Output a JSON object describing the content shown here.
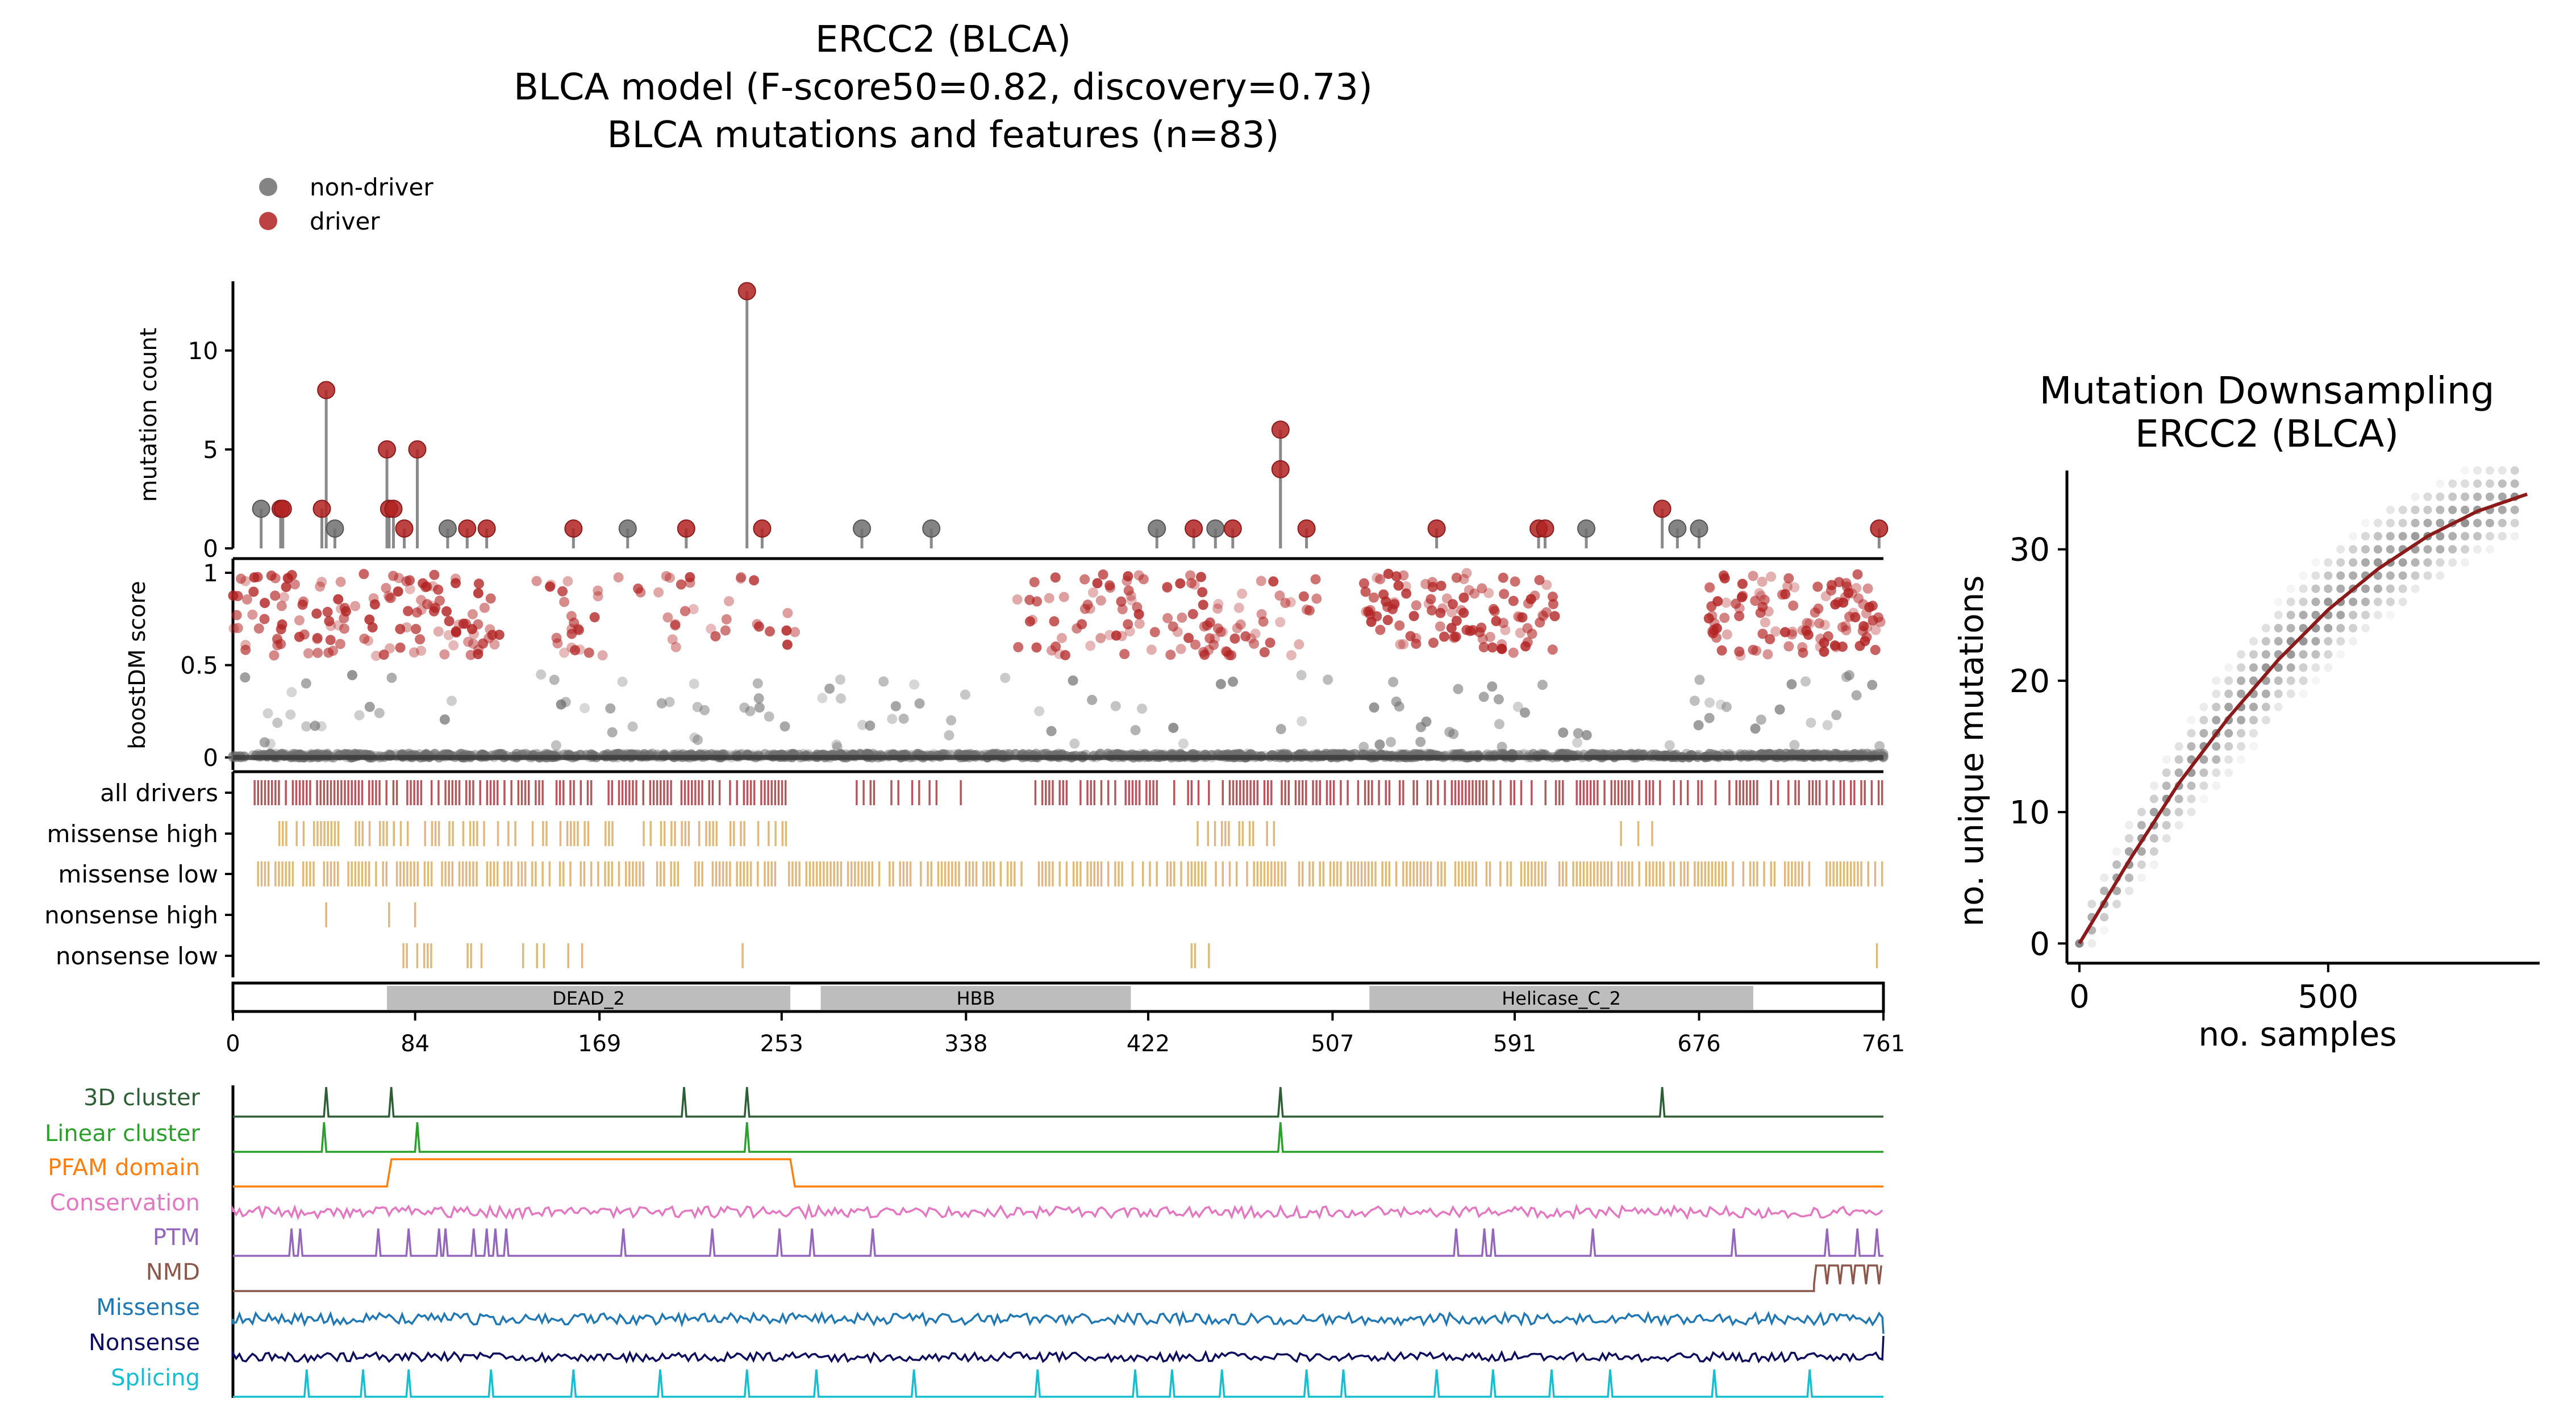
{
  "chart_data": [
    {
      "type": "lollipop",
      "title_lines": [
        "ERCC2 (BLCA)",
        "BLCA model (F-score50=0.82, discovery=0.73)",
        "BLCA mutations and features (n=83)"
      ],
      "legend": [
        {
          "label": "non-driver",
          "color": "#6e6e6e"
        },
        {
          "label": "driver",
          "color": "#b22222"
        }
      ],
      "legend_position": "top-left",
      "ylabel": "mutation count",
      "ylim": [
        0,
        13.5
      ],
      "yticks": [
        0,
        5,
        10
      ],
      "xlim": [
        0,
        761
      ],
      "xticks": [
        0,
        84,
        169,
        253,
        338,
        422,
        507,
        591,
        676,
        761
      ],
      "mutations": [
        {
          "pos": 13,
          "count": 2,
          "driver": false
        },
        {
          "pos": 22,
          "count": 2,
          "driver": true
        },
        {
          "pos": 23,
          "count": 2,
          "driver": true
        },
        {
          "pos": 41,
          "count": 2,
          "driver": true
        },
        {
          "pos": 43,
          "count": 8,
          "driver": true
        },
        {
          "pos": 47,
          "count": 1,
          "driver": false
        },
        {
          "pos": 71,
          "count": 5,
          "driver": true
        },
        {
          "pos": 72,
          "count": 2,
          "driver": true
        },
        {
          "pos": 74,
          "count": 2,
          "driver": true
        },
        {
          "pos": 79,
          "count": 1,
          "driver": true
        },
        {
          "pos": 85,
          "count": 5,
          "driver": true
        },
        {
          "pos": 99,
          "count": 1,
          "driver": false
        },
        {
          "pos": 108,
          "count": 1,
          "driver": true
        },
        {
          "pos": 117,
          "count": 1,
          "driver": true
        },
        {
          "pos": 157,
          "count": 1,
          "driver": true
        },
        {
          "pos": 182,
          "count": 1,
          "driver": false
        },
        {
          "pos": 209,
          "count": 1,
          "driver": true
        },
        {
          "pos": 237,
          "count": 13,
          "driver": true
        },
        {
          "pos": 244,
          "count": 1,
          "driver": true
        },
        {
          "pos": 290,
          "count": 1,
          "driver": false
        },
        {
          "pos": 322,
          "count": 1,
          "driver": false
        },
        {
          "pos": 426,
          "count": 1,
          "driver": false
        },
        {
          "pos": 443,
          "count": 1,
          "driver": true
        },
        {
          "pos": 453,
          "count": 1,
          "driver": false
        },
        {
          "pos": 461,
          "count": 1,
          "driver": true
        },
        {
          "pos": 483,
          "count": 6,
          "driver": true
        },
        {
          "pos": 483,
          "count": 4,
          "driver": true
        },
        {
          "pos": 495,
          "count": 1,
          "driver": true
        },
        {
          "pos": 555,
          "count": 1,
          "driver": true
        },
        {
          "pos": 602,
          "count": 1,
          "driver": true
        },
        {
          "pos": 605,
          "count": 1,
          "driver": true
        },
        {
          "pos": 624,
          "count": 1,
          "driver": false
        },
        {
          "pos": 659,
          "count": 2,
          "driver": true
        },
        {
          "pos": 666,
          "count": 1,
          "driver": false
        },
        {
          "pos": 676,
          "count": 1,
          "driver": false
        },
        {
          "pos": 759,
          "count": 1,
          "driver": true
        }
      ]
    },
    {
      "type": "scatter",
      "ylabel": "boostDM score",
      "ylim": [
        0,
        1
      ],
      "yticks": [
        0,
        0.5,
        1
      ],
      "xlim": [
        0,
        761
      ],
      "note_series": [
        {
          "name": "driver",
          "color": "#b22222"
        },
        {
          "name": "non-driver",
          "color": "#6e6e6e"
        }
      ]
    },
    {
      "type": "track",
      "rows": [
        "all drivers",
        "missense high",
        "missense low",
        "nonsense high",
        "nonsense low"
      ],
      "colors": {
        "all drivers": "#b5585e",
        "missense high": "#e0b97a",
        "missense low": "#e0b97a",
        "nonsense high": "#e0b97a",
        "nonsense low": "#e0b97a"
      }
    },
    {
      "type": "domains",
      "domains": [
        {
          "name": "DEAD_2",
          "start": 71,
          "end": 257
        },
        {
          "name": "HBB",
          "start": 271,
          "end": 414
        },
        {
          "name": "Helicase_C_2",
          "start": 524,
          "end": 701
        }
      ]
    },
    {
      "type": "line",
      "tracks": [
        {
          "name": "3D cluster",
          "color": "#2e5e35"
        },
        {
          "name": "Linear cluster",
          "color": "#2ca02c"
        },
        {
          "name": "PFAM domain",
          "color": "#ff7f0e"
        },
        {
          "name": "Conservation",
          "color": "#e377c2"
        },
        {
          "name": "PTM",
          "color": "#9467bd"
        },
        {
          "name": "NMD",
          "color": "#8c564b"
        },
        {
          "name": "Missense",
          "color": "#1f77b4"
        },
        {
          "name": "Nonsense",
          "color": "#0d0d5e"
        },
        {
          "name": "Splicing",
          "color": "#17becf"
        }
      ],
      "peaks": {
        "3D cluster": [
          43,
          73,
          208,
          237,
          483,
          659
        ],
        "Linear cluster": [
          42,
          85,
          237,
          483
        ],
        "PTM": [
          27,
          31,
          67,
          81,
          95,
          98,
          111,
          117,
          121,
          126,
          180,
          221,
          252,
          267,
          295,
          564,
          577,
          581,
          627,
          692,
          735,
          749,
          758
        ],
        "Splicing": [
          34,
          60,
          81,
          119,
          157,
          197,
          237,
          269,
          314,
          371,
          416,
          433,
          456,
          495,
          512,
          555,
          581,
          608,
          635,
          683,
          727
        ]
      },
      "pfam_range": [
        71,
        257
      ],
      "nmd_start": 729
    },
    {
      "type": "scatter",
      "title_lines": [
        "Mutation Downsampling",
        "ERCC2 (BLCA)"
      ],
      "xlabel": "no. samples",
      "ylabel": "no. unique mutations",
      "xlim": [
        -25,
        925
      ],
      "ylim": [
        -1.5,
        36
      ],
      "xticks": [
        0,
        500
      ],
      "yticks": [
        0,
        10,
        20,
        30
      ],
      "fit_line_color": "#8b1a1a",
      "fit_points": [
        [
          0,
          0
        ],
        [
          100,
          6.3
        ],
        [
          200,
          12.2
        ],
        [
          300,
          17.2
        ],
        [
          400,
          21.6
        ],
        [
          500,
          25.4
        ],
        [
          600,
          28.5
        ],
        [
          700,
          31.0
        ],
        [
          800,
          32.9
        ],
        [
          900,
          34.2
        ]
      ]
    }
  ]
}
